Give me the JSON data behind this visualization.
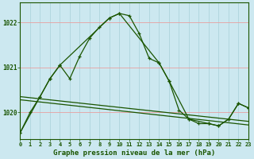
{
  "title": "Graphe pression niveau de la mer (hPa)",
  "background_color": "#cce8f0",
  "plot_bg_color": "#cce8f0",
  "grid_color_h": "#e8a0a0",
  "grid_color_v": "#a8d0d8",
  "line_color": "#1a5500",
  "xlim": [
    0,
    23
  ],
  "xticks": [
    0,
    1,
    2,
    3,
    4,
    5,
    6,
    7,
    8,
    9,
    10,
    11,
    12,
    13,
    14,
    15,
    16,
    17,
    18,
    19,
    20,
    21,
    22,
    23
  ],
  "hours": [
    0,
    1,
    2,
    3,
    4,
    5,
    6,
    7,
    8,
    9,
    10,
    11,
    12,
    13,
    14,
    15,
    16,
    17,
    18,
    19,
    20,
    21,
    22,
    23
  ],
  "main_y": [
    1019.55,
    1020.0,
    1020.35,
    1020.75,
    1021.05,
    1020.75,
    1021.25,
    1021.65,
    1021.9,
    1022.1,
    1022.2,
    1022.15,
    1021.75,
    1021.2,
    1021.1,
    1020.7,
    1020.05,
    1019.85,
    1019.75,
    1019.75,
    1019.7,
    1019.85,
    1020.2,
    1020.1
  ],
  "sparse_x": [
    0,
    2,
    3,
    4,
    9,
    10,
    14,
    15,
    17,
    19,
    20,
    21,
    22,
    23
  ],
  "sparse_y": [
    1019.55,
    1020.35,
    1020.75,
    1021.05,
    1022.1,
    1022.2,
    1021.1,
    1020.7,
    1019.85,
    1019.75,
    1019.7,
    1019.85,
    1020.2,
    1020.1
  ],
  "trend1_x": [
    0,
    23
  ],
  "trend1_y": [
    1020.35,
    1019.8
  ],
  "trend2_x": [
    0,
    23
  ],
  "trend2_y": [
    1020.28,
    1019.72
  ],
  "ylim": [
    1019.4,
    1022.45
  ],
  "yticks": [
    1020,
    1021,
    1022
  ],
  "ylabel_fontsize": 6,
  "xlabel_fontsize": 7
}
